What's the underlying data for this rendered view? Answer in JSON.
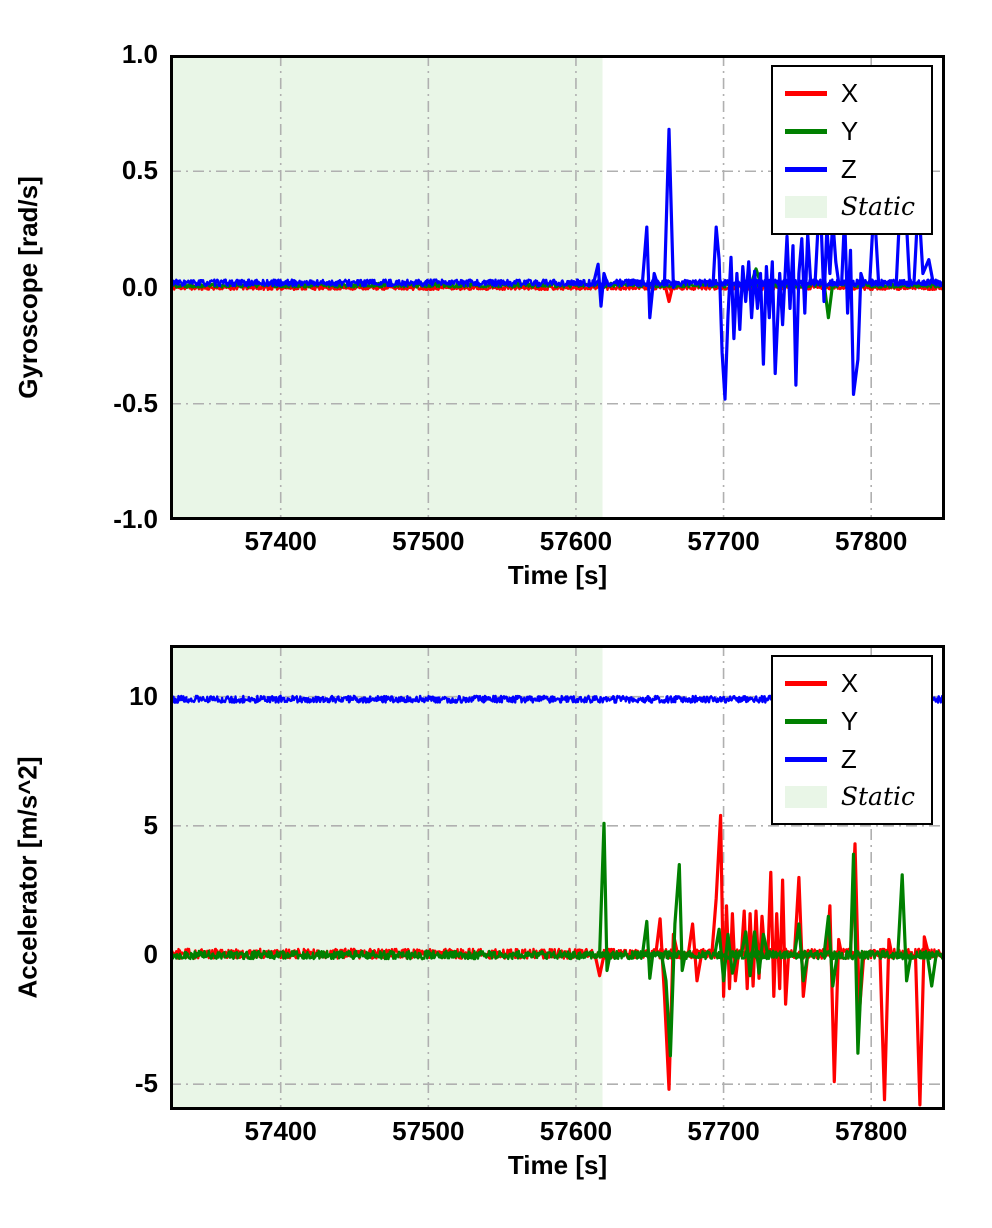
{
  "figure": {
    "background": "#ffffff"
  },
  "chart_data": [
    {
      "type": "line",
      "title": "",
      "xlabel": "Time [s]",
      "ylabel": "Gyroscope [rad/s]",
      "xlim": [
        57325,
        57850
      ],
      "ylim": [
        -1.0,
        1.0
      ],
      "xticks": [
        57400,
        57500,
        57600,
        57700,
        57800
      ],
      "xticklabels": [
        "57400",
        "57500",
        "57600",
        "57700",
        "57800"
      ],
      "yticks": [
        -1.0,
        -0.5,
        0.0,
        0.5,
        1.0
      ],
      "yticklabels": [
        "-1.0",
        "-0.5",
        "0.0",
        "0.5",
        "1.0"
      ],
      "grid": {
        "on": true,
        "style": "dashdot",
        "color": "#b0b0b0"
      },
      "static_region": {
        "label": "Static",
        "x0": 57325,
        "x1": 57618,
        "color": "#e9f6e7"
      },
      "legend": {
        "position": "upper right",
        "entries": [
          {
            "label": "X",
            "color": "#ff0000",
            "type": "line"
          },
          {
            "label": "Y",
            "color": "#008000",
            "type": "line"
          },
          {
            "label": "Z",
            "color": "#0000ff",
            "type": "line"
          },
          {
            "label": "Static",
            "color": "#e9f6e7",
            "type": "patch",
            "italic": true
          }
        ]
      },
      "series": [
        {
          "name": "X",
          "color": "#ff0000",
          "baseline": 0.0,
          "noise_amp": 0.01,
          "noise_seed": 11,
          "bursts": [
            [
              [
                57660,
                0.02
              ],
              [
                57663,
                -0.06
              ],
              [
                57666,
                0.02
              ]
            ]
          ]
        },
        {
          "name": "Y",
          "color": "#008000",
          "baseline": 0.01,
          "noise_amp": 0.01,
          "noise_seed": 22,
          "bursts": [
            [
              [
                57719,
                0.02
              ],
              [
                57722,
                0.08
              ],
              [
                57725,
                0.02
              ]
            ],
            [
              [
                57768,
                0.02
              ],
              [
                57771,
                -0.13
              ],
              [
                57774,
                0.02
              ]
            ]
          ]
        },
        {
          "name": "Z",
          "color": "#0000ff",
          "baseline": 0.02,
          "noise_amp": 0.014,
          "noise_seed": 33,
          "bursts": [
            [
              [
                57612,
                0.02
              ],
              [
                57615,
                0.1
              ],
              [
                57617,
                -0.08
              ],
              [
                57619,
                0.06
              ],
              [
                57621,
                0.02
              ]
            ],
            [
              [
                57645,
                0.02
              ],
              [
                57648,
                0.26
              ],
              [
                57650,
                -0.13
              ],
              [
                57653,
                0.06
              ],
              [
                57655,
                0.02
              ]
            ],
            [
              [
                57660,
                0.02
              ],
              [
                57663,
                0.68
              ],
              [
                57666,
                0.0
              ],
              [
                57668,
                0.02
              ]
            ],
            [
              [
                57693,
                0.02
              ],
              [
                57695,
                0.26
              ],
              [
                57697,
                0.12
              ],
              [
                57699,
                -0.28
              ],
              [
                57701,
                -0.48
              ],
              [
                57703,
                -0.12
              ],
              [
                57705,
                0.13
              ],
              [
                57707,
                -0.22
              ],
              [
                57709,
                0.06
              ],
              [
                57711,
                -0.18
              ],
              [
                57713,
                0.09
              ],
              [
                57715,
                -0.06
              ],
              [
                57717,
                0.11
              ],
              [
                57719,
                -0.13
              ],
              [
                57721,
                0.07
              ],
              [
                57723,
                -0.09
              ],
              [
                57725,
                0.06
              ],
              [
                57727,
                -0.33
              ],
              [
                57729,
                0.09
              ],
              [
                57731,
                -0.13
              ],
              [
                57733,
                0.11
              ],
              [
                57735,
                -0.37
              ],
              [
                57738,
                0.06
              ],
              [
                57740,
                -0.16
              ],
              [
                57743,
                0.22
              ],
              [
                57745,
                -0.09
              ],
              [
                57747,
                0.18
              ],
              [
                57749,
                -0.42
              ],
              [
                57751,
                0.06
              ],
              [
                57753,
                0.21
              ],
              [
                57755,
                -0.11
              ],
              [
                57757,
                0.23
              ],
              [
                57759,
                0.02
              ]
            ],
            [
              [
                57762,
                0.02
              ],
              [
                57764,
                0.26
              ],
              [
                57766,
                0.29
              ],
              [
                57768,
                -0.06
              ],
              [
                57770,
                0.26
              ],
              [
                57772,
                0.06
              ],
              [
                57774,
                0.29
              ],
              [
                57776,
                0.11
              ],
              [
                57778,
                0.02
              ]
            ],
            [
              [
                57780,
                0.02
              ],
              [
                57782,
                0.31
              ],
              [
                57784,
                -0.11
              ],
              [
                57786,
                0.16
              ],
              [
                57788,
                -0.46
              ],
              [
                57791,
                -0.31
              ],
              [
                57793,
                0.06
              ],
              [
                57795,
                0.02
              ]
            ],
            [
              [
                57799,
                0.02
              ],
              [
                57802,
                0.36
              ],
              [
                57805,
                0.02
              ]
            ],
            [
              [
                57817,
                0.02
              ],
              [
                57820,
                0.41
              ],
              [
                57823,
                0.39
              ],
              [
                57826,
                0.02
              ]
            ],
            [
              [
                57829,
                0.02
              ],
              [
                57832,
                0.38
              ],
              [
                57835,
                0.06
              ],
              [
                57839,
                0.12
              ],
              [
                57842,
                0.02
              ]
            ]
          ]
        }
      ]
    },
    {
      "type": "line",
      "title": "",
      "xlabel": "Time [s]",
      "ylabel": "Accelerator [m/s^2]",
      "xlim": [
        57325,
        57850
      ],
      "ylim": [
        -6.0,
        12.0
      ],
      "xticks": [
        57400,
        57500,
        57600,
        57700,
        57800
      ],
      "xticklabels": [
        "57400",
        "57500",
        "57600",
        "57700",
        "57800"
      ],
      "yticks": [
        -5,
        0,
        5,
        10
      ],
      "yticklabels": [
        "-5",
        "0",
        "5",
        "10"
      ],
      "grid": {
        "on": true,
        "style": "dashdot",
        "color": "#b0b0b0"
      },
      "static_region": {
        "label": "Static",
        "x0": 57325,
        "x1": 57618,
        "color": "#e9f6e7"
      },
      "legend": {
        "position": "upper right",
        "entries": [
          {
            "label": "X",
            "color": "#ff0000",
            "type": "line"
          },
          {
            "label": "Y",
            "color": "#008000",
            "type": "line"
          },
          {
            "label": "Z",
            "color": "#0000ff",
            "type": "line"
          },
          {
            "label": "Static",
            "color": "#e9f6e7",
            "type": "patch",
            "italic": true
          }
        ]
      },
      "series": [
        {
          "name": "X",
          "color": "#ff0000",
          "baseline": 0.05,
          "noise_amp": 0.19,
          "noise_seed": 44,
          "bursts": [
            [
              [
                57613,
                0.0
              ],
              [
                57616,
                -0.8
              ],
              [
                57619,
                0.0
              ]
            ],
            [
              [
                57654,
                0.0
              ],
              [
                57657,
                1.4
              ],
              [
                57660,
                -1.6
              ],
              [
                57663,
                -5.2
              ],
              [
                57666,
                0.8
              ],
              [
                57669,
                0.0
              ]
            ],
            [
              [
                57676,
                0.0
              ],
              [
                57679,
                1.2
              ],
              [
                57682,
                -1.0
              ],
              [
                57685,
                0.0
              ]
            ],
            [
              [
                57692,
                0.0
              ],
              [
                57695,
                2.2
              ],
              [
                57698,
                5.4
              ],
              [
                57700,
                -1.6
              ],
              [
                57702,
                1.9
              ],
              [
                57704,
                -1.3
              ],
              [
                57706,
                1.6
              ],
              [
                57708,
                -1.0
              ],
              [
                57710,
                0.0
              ]
            ],
            [
              [
                57712,
                0.0
              ],
              [
                57714,
                1.7
              ],
              [
                57716,
                -1.3
              ],
              [
                57718,
                1.6
              ],
              [
                57720,
                -1.2
              ],
              [
                57722,
                1.7
              ],
              [
                57724,
                -0.9
              ],
              [
                57726,
                1.5
              ],
              [
                57728,
                0.0
              ]
            ],
            [
              [
                57730,
                0.0
              ],
              [
                57732,
                3.2
              ],
              [
                57734,
                -1.6
              ],
              [
                57736,
                1.6
              ],
              [
                57738,
                -1.3
              ],
              [
                57740,
                2.9
              ],
              [
                57742,
                -1.9
              ],
              [
                57744,
                0.0
              ]
            ],
            [
              [
                57748,
                0.0
              ],
              [
                57751,
                3.0
              ],
              [
                57754,
                -1.6
              ],
              [
                57757,
                0.0
              ]
            ],
            [
              [
                57770,
                0.0
              ],
              [
                57772,
                1.9
              ],
              [
                57775,
                -4.9
              ],
              [
                57778,
                0.6
              ],
              [
                57780,
                0.0
              ]
            ],
            [
              [
                57786,
                0.0
              ],
              [
                57789,
                4.3
              ],
              [
                57792,
                -2.2
              ],
              [
                57795,
                0.0
              ]
            ],
            [
              [
                57806,
                0.0
              ],
              [
                57809,
                -5.6
              ],
              [
                57812,
                0.6
              ],
              [
                57814,
                0.0
              ]
            ],
            [
              [
                57830,
                0.0
              ],
              [
                57833,
                -5.8
              ],
              [
                57836,
                0.7
              ],
              [
                57839,
                0.0
              ]
            ]
          ]
        },
        {
          "name": "Y",
          "color": "#008000",
          "baseline": 0.0,
          "noise_amp": 0.16,
          "noise_seed": 55,
          "bursts": [
            [
              [
                57616,
                0.0
              ],
              [
                57619,
                5.1
              ],
              [
                57621,
                -0.6
              ],
              [
                57623,
                0.0
              ]
            ],
            [
              [
                57645,
                0.0
              ],
              [
                57648,
                1.3
              ],
              [
                57650,
                -0.9
              ],
              [
                57652,
                0.0
              ]
            ],
            [
              [
                57658,
                0.0
              ],
              [
                57661,
                -1.0
              ],
              [
                57664,
                -3.9
              ],
              [
                57667,
                1.2
              ],
              [
                57670,
                3.5
              ],
              [
                57672,
                -0.6
              ],
              [
                57674,
                0.0
              ]
            ],
            [
              [
                57694,
                0.0
              ],
              [
                57697,
                1.0
              ],
              [
                57700,
                -1.0
              ],
              [
                57703,
                0.8
              ],
              [
                57706,
                -0.7
              ],
              [
                57709,
                0.0
              ]
            ],
            [
              [
                57712,
                0.0
              ],
              [
                57715,
                0.9
              ],
              [
                57718,
                -0.8
              ],
              [
                57721,
                0.9
              ],
              [
                57724,
                -0.7
              ],
              [
                57727,
                0.8
              ],
              [
                57730,
                0.0
              ]
            ],
            [
              [
                57748,
                0.0
              ],
              [
                57751,
                1.2
              ],
              [
                57754,
                -1.0
              ],
              [
                57757,
                0.0
              ]
            ],
            [
              [
                57768,
                0.0
              ],
              [
                57771,
                1.5
              ],
              [
                57774,
                -1.2
              ],
              [
                57777,
                0.0
              ]
            ],
            [
              [
                57786,
                0.0
              ],
              [
                57788,
                3.9
              ],
              [
                57791,
                -3.8
              ],
              [
                57794,
                0.0
              ]
            ],
            [
              [
                57818,
                0.0
              ],
              [
                57821,
                3.1
              ],
              [
                57824,
                -1.0
              ],
              [
                57827,
                0.0
              ]
            ],
            [
              [
                57838,
                0.0
              ],
              [
                57841,
                -1.2
              ],
              [
                57844,
                0.0
              ]
            ]
          ]
        },
        {
          "name": "Z",
          "color": "#0000ff",
          "baseline": 9.9,
          "noise_amp": 0.13,
          "noise_seed": 66,
          "bursts": []
        }
      ]
    }
  ]
}
